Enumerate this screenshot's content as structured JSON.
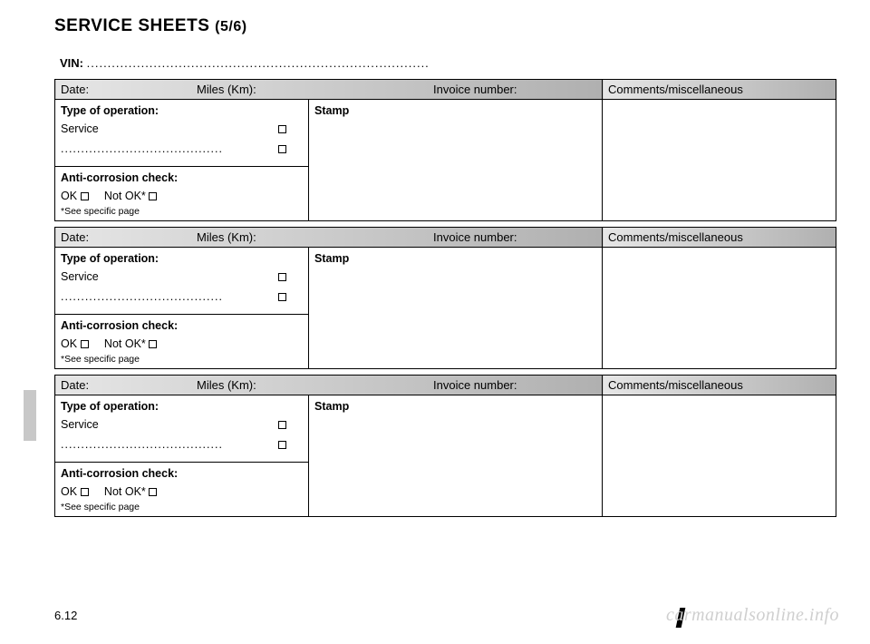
{
  "title_main": "SERVICE SHEETS",
  "title_sub": "(5/6)",
  "vin_label": "VIN:",
  "vin_dots": "..................................................................................",
  "page_number": "6.12",
  "watermark": "carmanualsonline.info",
  "header": {
    "date": "Date:",
    "miles": "Miles (Km):",
    "invoice": "Invoice number:",
    "comments": "Comments/miscellaneous"
  },
  "row": {
    "type_hdr": "Type of operation:",
    "stamp_hdr": "Stamp",
    "service": "Service",
    "fill_dots": "........................................",
    "anti_hdr": "Anti-corrosion check:",
    "ok": "OK",
    "notok": "Not OK*",
    "footnote": "*See specific page"
  },
  "colors": {
    "header_grad_start": "#e6e6e6",
    "header_grad_end": "#b0b0b0",
    "border": "#000000",
    "sidetab": "#c8c8c8",
    "watermark": "#cfcfcf"
  }
}
